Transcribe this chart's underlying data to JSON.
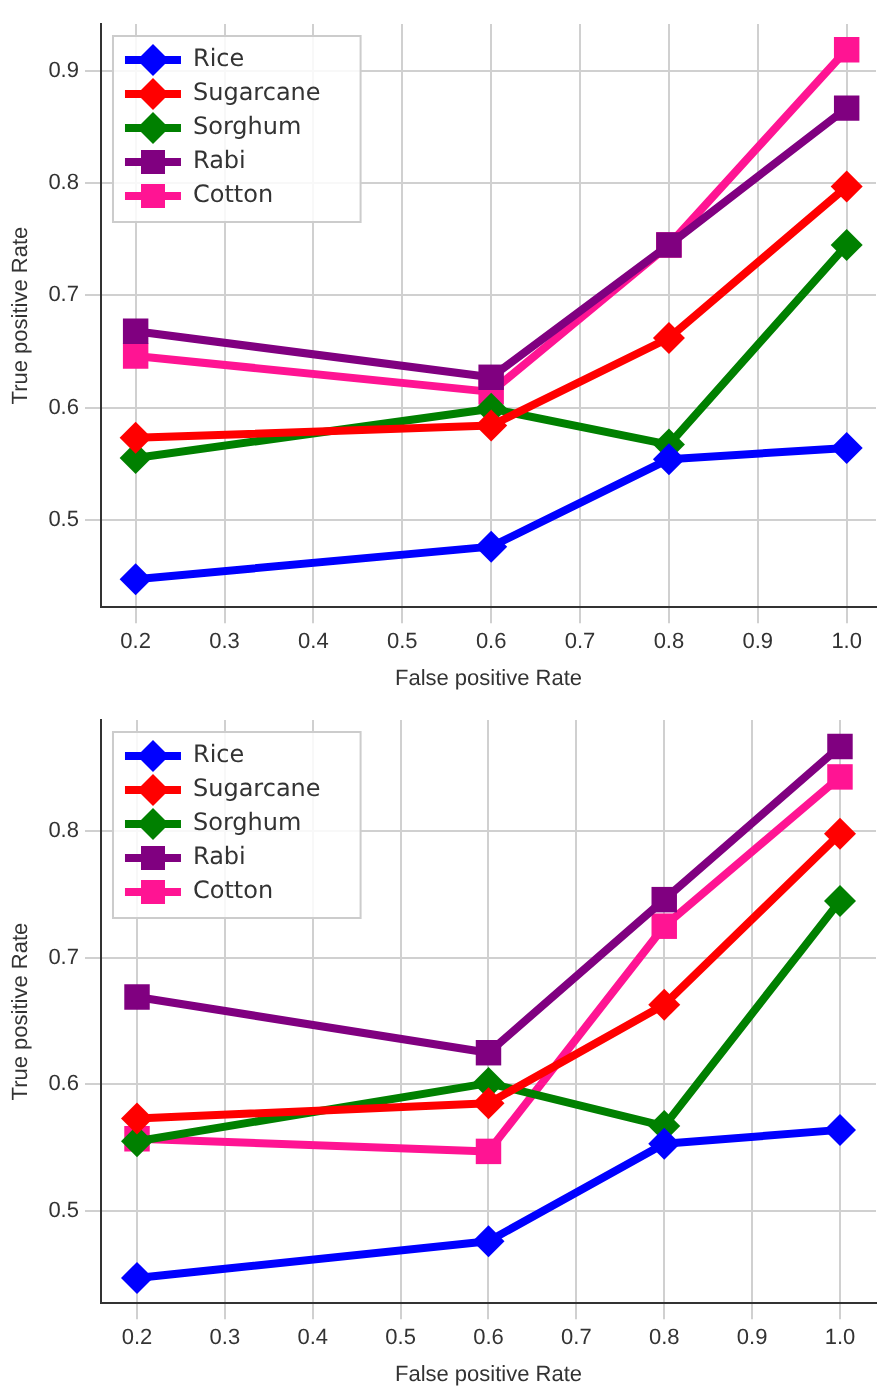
{
  "chart_data": [
    {
      "type": "line",
      "xlabel": "False positive Rate",
      "ylabel": "True positive Rate",
      "x": [
        0.2,
        0.6,
        0.8,
        1.0
      ],
      "xlim": [
        0.161,
        1.033
      ],
      "xticks": [
        0.2,
        0.3,
        0.4,
        0.5,
        0.6,
        0.7,
        0.8,
        0.9,
        {
          "value": 1.0,
          "label": "1.0"
        }
      ],
      "ylim": [
        0.422,
        0.942
      ],
      "yticks": [
        0.5,
        0.6,
        0.7,
        0.8,
        0.9
      ],
      "grid": true,
      "legend": "top left",
      "line_style": "solid",
      "series": [
        {
          "name": "Rice",
          "color": "#0000ff",
          "marker": "diamond",
          "values": [
            0.447,
            0.476,
            0.554,
            0.564
          ]
        },
        {
          "name": "Sugarcane",
          "color": "#ff0000",
          "marker": "diamond",
          "values": [
            0.573,
            0.584,
            0.662,
            0.797
          ]
        },
        {
          "name": "Sorghum",
          "color": "#008000",
          "marker": "diamond",
          "values": [
            0.555,
            0.599,
            0.567,
            0.745
          ]
        },
        {
          "name": "Rabi",
          "color": "#800080",
          "marker": "square",
          "values": [
            0.668,
            0.627,
            0.745,
            0.867
          ]
        },
        {
          "name": "Cotton",
          "color": "#ff1493",
          "marker": "square",
          "values": [
            0.646,
            0.614,
            0.745,
            0.919
          ]
        }
      ]
    },
    {
      "type": "line",
      "xlabel": "False positive Rate",
      "ylabel": "True positive Rate",
      "x": [
        0.2,
        0.6,
        0.8,
        1.0
      ],
      "xlim": [
        0.159,
        1.041
      ],
      "xticks": [
        0.2,
        0.3,
        0.4,
        0.5,
        0.6,
        0.7,
        0.8,
        0.9,
        {
          "value": 1.0,
          "label": "1.0"
        }
      ],
      "ylim": [
        0.427,
        0.888
      ],
      "yticks": [
        0.5,
        0.6,
        0.7,
        0.8
      ],
      "grid": true,
      "legend": "top left",
      "line_style": "solid",
      "series": [
        {
          "name": "Rice",
          "color": "#0000ff",
          "marker": "diamond",
          "values": [
            0.447,
            0.476,
            0.553,
            0.564
          ]
        },
        {
          "name": "Sugarcane",
          "color": "#ff0000",
          "marker": "diamond",
          "values": [
            0.573,
            0.585,
            0.663,
            0.798
          ]
        },
        {
          "name": "Sorghum",
          "color": "#008000",
          "marker": "diamond",
          "values": [
            0.555,
            0.601,
            0.567,
            0.745
          ]
        },
        {
          "name": "Rabi",
          "color": "#800080",
          "marker": "square",
          "values": [
            0.669,
            0.625,
            0.746,
            0.867
          ]
        },
        {
          "name": "Cotton",
          "color": "#ff1493",
          "marker": "square",
          "values": [
            0.557,
            0.547,
            0.725,
            0.843
          ]
        }
      ]
    }
  ]
}
